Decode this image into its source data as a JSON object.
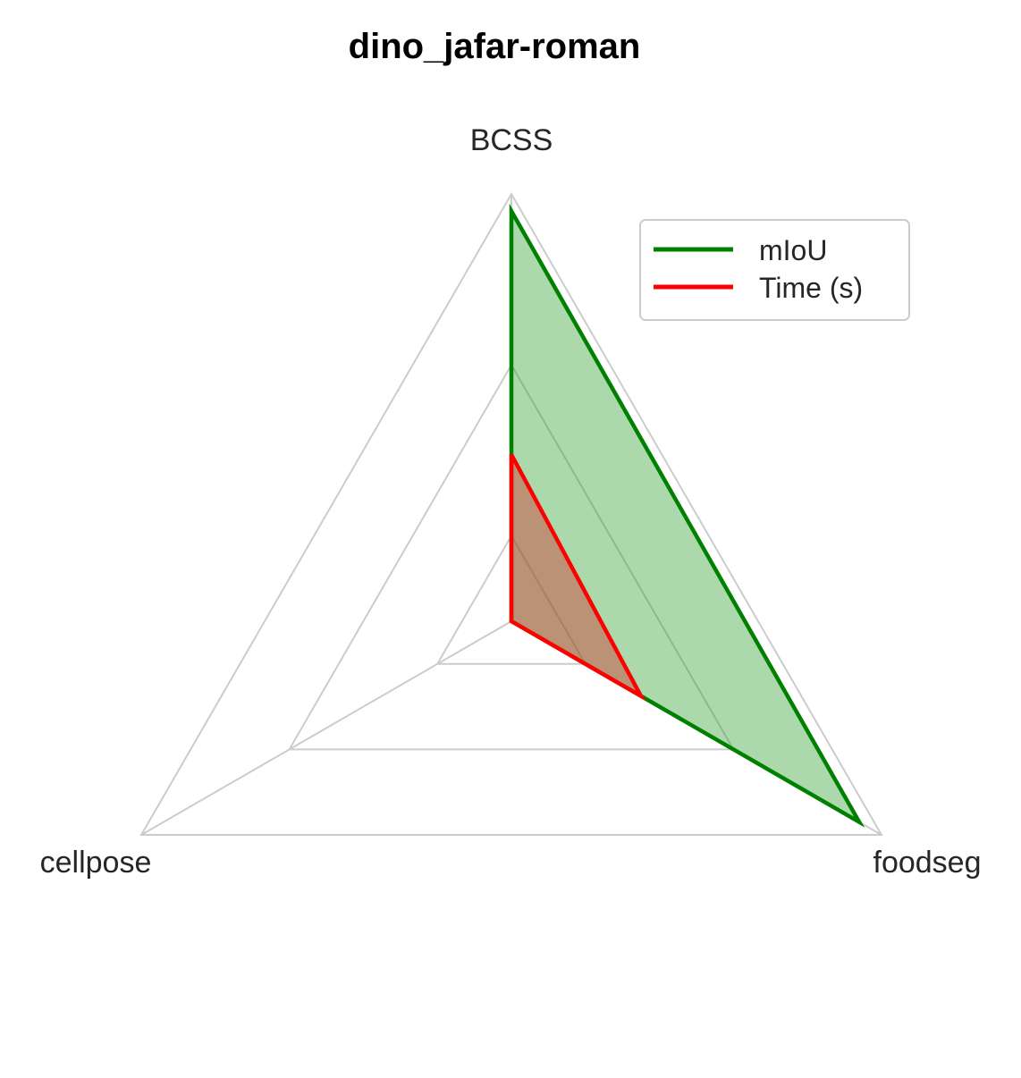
{
  "chart_data": {
    "type": "radar",
    "title": "dino_jafar-roman",
    "axes": [
      "BCSS",
      "cellpose",
      "foodseg"
    ],
    "rlim": [
      0,
      1
    ],
    "grid_levels": [
      0.2,
      0.6,
      1.0
    ],
    "grid": true,
    "legend_position": "top-right",
    "series": [
      {
        "name": "mIoU",
        "values": [
          0.96,
          0.0,
          0.94
        ],
        "color": "#008000",
        "fill_color": "#2ca02c",
        "fill_opacity": 0.4
      },
      {
        "name": "Time (s)",
        "values": [
          0.39,
          0.0,
          0.35
        ],
        "color": "#ff0000",
        "fill_color": "#d62728",
        "fill_opacity": 0.4
      }
    ]
  }
}
